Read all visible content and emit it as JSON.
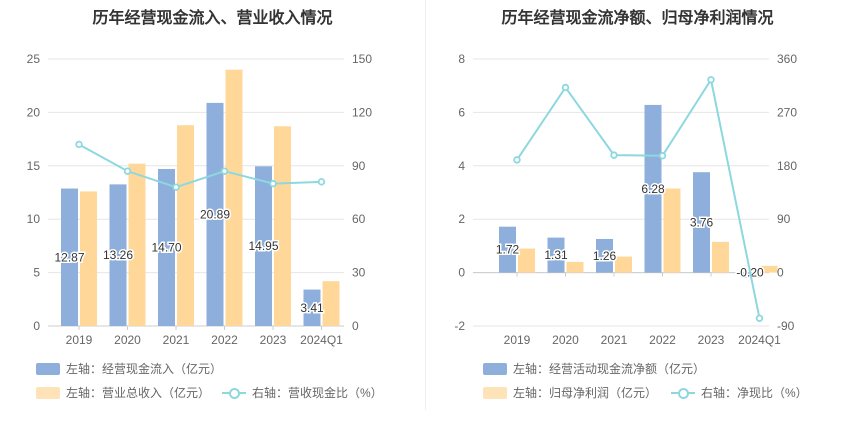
{
  "colors": {
    "blue": "#8eaedc",
    "orange": "#ffd899",
    "teal": "#8dd8df",
    "grid": "#e6e6e6",
    "axis": "#999999"
  },
  "chart_data": [
    {
      "type": "bar",
      "title": "历年经营现金流入、营业收入情况",
      "categories": [
        "2019",
        "2020",
        "2021",
        "2022",
        "2023",
        "2024Q1"
      ],
      "y_left": {
        "min": 0,
        "max": 25,
        "ticks": [
          0,
          5,
          10,
          15,
          20,
          25
        ]
      },
      "y_right": {
        "min": 0,
        "max": 150,
        "ticks": [
          0,
          30,
          60,
          90,
          120,
          150
        ]
      },
      "series": [
        {
          "name": "左轴：经营现金流入（亿元）",
          "axis": "left",
          "kind": "bar",
          "color": "#8eaedc",
          "values": [
            12.87,
            13.26,
            14.7,
            20.89,
            14.95,
            3.41
          ],
          "labels": [
            "12.87",
            "13.26",
            "14.70",
            "20.89",
            "14.95",
            "3.41"
          ]
        },
        {
          "name": "左轴：营业总收入（亿元）",
          "axis": "left",
          "kind": "bar",
          "color": "#ffd899",
          "values": [
            12.6,
            15.2,
            18.8,
            24.0,
            18.7,
            4.2
          ]
        },
        {
          "name": "右轴：营收现金比（%）",
          "axis": "right",
          "kind": "line",
          "color": "#8dd8df",
          "values": [
            102,
            87,
            78,
            87,
            80,
            81
          ]
        }
      ]
    },
    {
      "type": "bar",
      "title": "历年经营现金流净额、归母净利润情况",
      "categories": [
        "2019",
        "2020",
        "2021",
        "2022",
        "2023",
        "2024Q1"
      ],
      "y_left": {
        "min": -2,
        "max": 8,
        "ticks": [
          -2,
          0,
          2,
          4,
          6,
          8
        ]
      },
      "y_right": {
        "min": -90,
        "max": 360,
        "ticks": [
          -90,
          0,
          90,
          180,
          270,
          360
        ]
      },
      "series": [
        {
          "name": "左轴：经营活动现金流净额（亿元）",
          "axis": "left",
          "kind": "bar",
          "color": "#8eaedc",
          "values": [
            1.72,
            1.31,
            1.26,
            6.28,
            3.76,
            -0.2
          ],
          "labels": [
            "1.72",
            "1.31",
            "1.26",
            "6.28",
            "3.76",
            "-0.20"
          ]
        },
        {
          "name": "左轴：归母净利润（亿元）",
          "axis": "left",
          "kind": "bar",
          "color": "#ffd899",
          "values": [
            0.9,
            0.4,
            0.6,
            3.15,
            1.15,
            0.25
          ]
        },
        {
          "name": "右轴：净现比（%）",
          "axis": "right",
          "kind": "line",
          "color": "#8dd8df",
          "values": [
            190,
            312,
            198,
            197,
            325,
            -77
          ]
        }
      ]
    }
  ]
}
